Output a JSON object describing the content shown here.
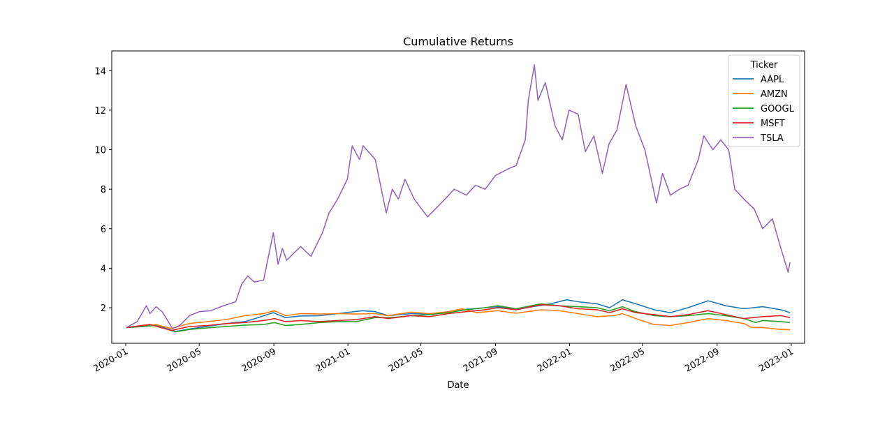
{
  "chart_data": {
    "type": "line",
    "title": "Cumulative Returns",
    "xlabel": "Date",
    "ylabel": "",
    "xlim": [
      "2019-12-09",
      "2023-01-23"
    ],
    "ylim": [
      0.2,
      15.0
    ],
    "x_ticks": [
      "2020-01",
      "2020-05",
      "2020-09",
      "2021-01",
      "2021-05",
      "2021-09",
      "2022-01",
      "2022-05",
      "2022-09",
      "2023-01"
    ],
    "y_ticks": [
      2,
      4,
      6,
      8,
      10,
      12,
      14
    ],
    "grid": false,
    "legend": {
      "title": "Ticker",
      "position": "top-right"
    },
    "series": [
      {
        "name": "AAPL",
        "color": "#1f77b4",
        "points": [
          [
            "2020-01-02",
            1.0
          ],
          [
            "2020-02-01",
            1.05
          ],
          [
            "2020-02-20",
            1.12
          ],
          [
            "2020-03-23",
            0.8
          ],
          [
            "2020-04-15",
            0.92
          ],
          [
            "2020-05-15",
            1.06
          ],
          [
            "2020-06-15",
            1.2
          ],
          [
            "2020-07-15",
            1.3
          ],
          [
            "2020-08-01",
            1.45
          ],
          [
            "2020-08-31",
            1.75
          ],
          [
            "2020-09-20",
            1.5
          ],
          [
            "2020-10-15",
            1.58
          ],
          [
            "2020-11-15",
            1.6
          ],
          [
            "2020-12-15",
            1.7
          ],
          [
            "2021-01-25",
            1.85
          ],
          [
            "2021-02-15",
            1.8
          ],
          [
            "2021-03-08",
            1.6
          ],
          [
            "2021-04-15",
            1.7
          ],
          [
            "2021-05-15",
            1.68
          ],
          [
            "2021-06-15",
            1.75
          ],
          [
            "2021-07-15",
            1.92
          ],
          [
            "2021-08-15",
            2.0
          ],
          [
            "2021-09-05",
            2.05
          ],
          [
            "2021-10-05",
            1.9
          ],
          [
            "2021-11-01",
            2.05
          ],
          [
            "2021-12-01",
            2.2
          ],
          [
            "2021-12-27",
            2.4
          ],
          [
            "2022-01-15",
            2.3
          ],
          [
            "2022-02-15",
            2.2
          ],
          [
            "2022-03-08",
            2.0
          ],
          [
            "2022-03-29",
            2.4
          ],
          [
            "2022-04-20",
            2.2
          ],
          [
            "2022-05-20",
            1.9
          ],
          [
            "2022-06-16",
            1.75
          ],
          [
            "2022-07-15",
            2.0
          ],
          [
            "2022-08-17",
            2.35
          ],
          [
            "2022-09-15",
            2.1
          ],
          [
            "2022-10-15",
            1.95
          ],
          [
            "2022-11-15",
            2.05
          ],
          [
            "2022-12-15",
            1.9
          ],
          [
            "2022-12-30",
            1.75
          ]
        ]
      },
      {
        "name": "AMZN",
        "color": "#ff7f0e",
        "points": [
          [
            "2020-01-02",
            1.0
          ],
          [
            "2020-02-01",
            1.08
          ],
          [
            "2020-02-20",
            1.15
          ],
          [
            "2020-03-16",
            0.95
          ],
          [
            "2020-04-15",
            1.2
          ],
          [
            "2020-05-15",
            1.3
          ],
          [
            "2020-06-15",
            1.4
          ],
          [
            "2020-07-15",
            1.6
          ],
          [
            "2020-08-15",
            1.7
          ],
          [
            "2020-09-02",
            1.85
          ],
          [
            "2020-09-20",
            1.6
          ],
          [
            "2020-10-15",
            1.7
          ],
          [
            "2020-11-15",
            1.68
          ],
          [
            "2020-12-15",
            1.7
          ],
          [
            "2021-01-15",
            1.68
          ],
          [
            "2021-02-15",
            1.7
          ],
          [
            "2021-03-08",
            1.6
          ],
          [
            "2021-04-15",
            1.78
          ],
          [
            "2021-05-15",
            1.7
          ],
          [
            "2021-06-15",
            1.8
          ],
          [
            "2021-07-08",
            1.95
          ],
          [
            "2021-08-01",
            1.75
          ],
          [
            "2021-09-05",
            1.85
          ],
          [
            "2021-10-05",
            1.72
          ],
          [
            "2021-11-15",
            1.9
          ],
          [
            "2021-12-15",
            1.85
          ],
          [
            "2022-01-15",
            1.7
          ],
          [
            "2022-02-15",
            1.55
          ],
          [
            "2022-03-15",
            1.6
          ],
          [
            "2022-03-29",
            1.7
          ],
          [
            "2022-04-20",
            1.45
          ],
          [
            "2022-05-20",
            1.15
          ],
          [
            "2022-06-16",
            1.1
          ],
          [
            "2022-07-15",
            1.25
          ],
          [
            "2022-08-17",
            1.45
          ],
          [
            "2022-09-15",
            1.35
          ],
          [
            "2022-10-15",
            1.2
          ],
          [
            "2022-10-28",
            1.0
          ],
          [
            "2022-11-15",
            1.0
          ],
          [
            "2022-12-15",
            0.9
          ],
          [
            "2022-12-30",
            0.88
          ]
        ]
      },
      {
        "name": "GOOGL",
        "color": "#2ca02c",
        "points": [
          [
            "2020-01-02",
            1.0
          ],
          [
            "2020-02-19",
            1.1
          ],
          [
            "2020-03-23",
            0.78
          ],
          [
            "2020-04-15",
            0.9
          ],
          [
            "2020-05-15",
            0.98
          ],
          [
            "2020-06-15",
            1.05
          ],
          [
            "2020-07-15",
            1.12
          ],
          [
            "2020-08-15",
            1.15
          ],
          [
            "2020-09-02",
            1.25
          ],
          [
            "2020-09-20",
            1.1
          ],
          [
            "2020-10-15",
            1.15
          ],
          [
            "2020-11-15",
            1.25
          ],
          [
            "2020-12-15",
            1.3
          ],
          [
            "2021-01-15",
            1.3
          ],
          [
            "2021-02-15",
            1.5
          ],
          [
            "2021-03-15",
            1.5
          ],
          [
            "2021-04-15",
            1.6
          ],
          [
            "2021-05-15",
            1.65
          ],
          [
            "2021-06-15",
            1.75
          ],
          [
            "2021-07-15",
            1.9
          ],
          [
            "2021-08-15",
            2.0
          ],
          [
            "2021-09-05",
            2.1
          ],
          [
            "2021-10-05",
            1.95
          ],
          [
            "2021-11-15",
            2.2
          ],
          [
            "2021-12-15",
            2.1
          ],
          [
            "2022-01-15",
            2.05
          ],
          [
            "2022-02-15",
            2.0
          ],
          [
            "2022-03-08",
            1.85
          ],
          [
            "2022-03-29",
            2.05
          ],
          [
            "2022-04-20",
            1.8
          ],
          [
            "2022-05-20",
            1.6
          ],
          [
            "2022-06-16",
            1.55
          ],
          [
            "2022-07-15",
            1.6
          ],
          [
            "2022-08-17",
            1.7
          ],
          [
            "2022-09-15",
            1.6
          ],
          [
            "2022-10-15",
            1.45
          ],
          [
            "2022-11-03",
            1.25
          ],
          [
            "2022-11-15",
            1.35
          ],
          [
            "2022-12-15",
            1.3
          ],
          [
            "2022-12-30",
            1.25
          ]
        ]
      },
      {
        "name": "MSFT",
        "color": "#d62728",
        "points": [
          [
            "2020-01-02",
            1.0
          ],
          [
            "2020-02-10",
            1.15
          ],
          [
            "2020-03-16",
            0.85
          ],
          [
            "2020-04-15",
            1.05
          ],
          [
            "2020-05-15",
            1.1
          ],
          [
            "2020-06-15",
            1.2
          ],
          [
            "2020-07-15",
            1.25
          ],
          [
            "2020-08-15",
            1.35
          ],
          [
            "2020-09-02",
            1.45
          ],
          [
            "2020-09-20",
            1.3
          ],
          [
            "2020-10-15",
            1.35
          ],
          [
            "2020-11-15",
            1.3
          ],
          [
            "2020-12-15",
            1.35
          ],
          [
            "2021-01-15",
            1.4
          ],
          [
            "2021-02-15",
            1.55
          ],
          [
            "2021-03-08",
            1.45
          ],
          [
            "2021-04-15",
            1.6
          ],
          [
            "2021-05-15",
            1.55
          ],
          [
            "2021-06-15",
            1.7
          ],
          [
            "2021-07-15",
            1.8
          ],
          [
            "2021-08-15",
            1.9
          ],
          [
            "2021-09-05",
            2.0
          ],
          [
            "2021-10-05",
            1.9
          ],
          [
            "2021-11-15",
            2.15
          ],
          [
            "2021-12-15",
            2.1
          ],
          [
            "2022-01-15",
            1.95
          ],
          [
            "2022-02-15",
            1.9
          ],
          [
            "2022-03-08",
            1.75
          ],
          [
            "2022-03-29",
            1.95
          ],
          [
            "2022-04-20",
            1.75
          ],
          [
            "2022-05-20",
            1.65
          ],
          [
            "2022-06-16",
            1.55
          ],
          [
            "2022-07-15",
            1.65
          ],
          [
            "2022-08-17",
            1.85
          ],
          [
            "2022-09-15",
            1.65
          ],
          [
            "2022-10-15",
            1.45
          ],
          [
            "2022-11-15",
            1.55
          ],
          [
            "2022-12-15",
            1.6
          ],
          [
            "2022-12-30",
            1.5
          ]
        ]
      },
      {
        "name": "TSLA",
        "color": "#9467bd",
        "points": [
          [
            "2020-01-02",
            1.0
          ],
          [
            "2020-01-20",
            1.3
          ],
          [
            "2020-02-04",
            2.1
          ],
          [
            "2020-02-10",
            1.7
          ],
          [
            "2020-02-20",
            2.05
          ],
          [
            "2020-03-01",
            1.8
          ],
          [
            "2020-03-18",
            0.95
          ],
          [
            "2020-03-30",
            1.1
          ],
          [
            "2020-04-15",
            1.6
          ],
          [
            "2020-05-01",
            1.8
          ],
          [
            "2020-05-20",
            1.85
          ],
          [
            "2020-06-10",
            2.1
          ],
          [
            "2020-06-30",
            2.3
          ],
          [
            "2020-07-10",
            3.2
          ],
          [
            "2020-07-20",
            3.6
          ],
          [
            "2020-07-31",
            3.3
          ],
          [
            "2020-08-15",
            3.4
          ],
          [
            "2020-08-31",
            5.8
          ],
          [
            "2020-09-08",
            4.2
          ],
          [
            "2020-09-15",
            5.0
          ],
          [
            "2020-09-22",
            4.4
          ],
          [
            "2020-10-15",
            5.1
          ],
          [
            "2020-11-01",
            4.6
          ],
          [
            "2020-11-20",
            5.8
          ],
          [
            "2020-12-01",
            6.8
          ],
          [
            "2020-12-15",
            7.5
          ],
          [
            "2020-12-31",
            8.5
          ],
          [
            "2021-01-08",
            10.2
          ],
          [
            "2021-01-20",
            9.5
          ],
          [
            "2021-01-26",
            10.2
          ],
          [
            "2021-02-15",
            9.5
          ],
          [
            "2021-03-05",
            6.8
          ],
          [
            "2021-03-15",
            8.0
          ],
          [
            "2021-03-25",
            7.5
          ],
          [
            "2021-04-05",
            8.5
          ],
          [
            "2021-04-20",
            7.5
          ],
          [
            "2021-05-12",
            6.6
          ],
          [
            "2021-05-25",
            7.0
          ],
          [
            "2021-06-10",
            7.5
          ],
          [
            "2021-06-25",
            8.0
          ],
          [
            "2021-07-15",
            7.7
          ],
          [
            "2021-07-30",
            8.2
          ],
          [
            "2021-08-15",
            8.0
          ],
          [
            "2021-09-01",
            8.7
          ],
          [
            "2021-09-20",
            9.0
          ],
          [
            "2021-10-05",
            9.2
          ],
          [
            "2021-10-20",
            10.5
          ],
          [
            "2021-10-25",
            12.5
          ],
          [
            "2021-11-04",
            14.3
          ],
          [
            "2021-11-10",
            12.5
          ],
          [
            "2021-11-22",
            13.4
          ],
          [
            "2021-12-08",
            11.2
          ],
          [
            "2021-12-20",
            10.5
          ],
          [
            "2021-12-31",
            12.0
          ],
          [
            "2022-01-15",
            11.8
          ],
          [
            "2022-01-27",
            9.9
          ],
          [
            "2022-02-10",
            10.7
          ],
          [
            "2022-02-24",
            8.8
          ],
          [
            "2022-03-07",
            10.3
          ],
          [
            "2022-03-20",
            11.0
          ],
          [
            "2022-04-04",
            13.3
          ],
          [
            "2022-04-20",
            11.2
          ],
          [
            "2022-05-05",
            10.0
          ],
          [
            "2022-05-24",
            7.3
          ],
          [
            "2022-06-03",
            8.8
          ],
          [
            "2022-06-16",
            7.7
          ],
          [
            "2022-07-01",
            8.0
          ],
          [
            "2022-07-15",
            8.2
          ],
          [
            "2022-08-01",
            9.5
          ],
          [
            "2022-08-10",
            10.7
          ],
          [
            "2022-08-25",
            10.0
          ],
          [
            "2022-09-07",
            10.5
          ],
          [
            "2022-09-20",
            10.0
          ],
          [
            "2022-09-30",
            8.0
          ],
          [
            "2022-10-15",
            7.5
          ],
          [
            "2022-11-01",
            7.0
          ],
          [
            "2022-11-15",
            6.0
          ],
          [
            "2022-12-01",
            6.5
          ],
          [
            "2022-12-15",
            5.0
          ],
          [
            "2022-12-27",
            3.8
          ],
          [
            "2022-12-30",
            4.3
          ]
        ]
      }
    ]
  }
}
